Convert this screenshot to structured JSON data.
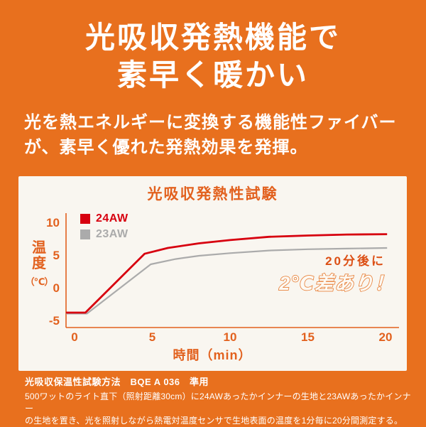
{
  "colors": {
    "background": "#E8701E",
    "panel": "#F9F6F0",
    "accent": "#E2611E",
    "series_red": "#D7000F",
    "series_gray": "#ABABAB",
    "annotation_red": "#DC4F14",
    "annotation_outline": "#E8823C",
    "annotation_fill": "#FDFAF4",
    "text_white": "#FFFFFF"
  },
  "header": {
    "title_line1": "光吸収発熱機能で",
    "title_line2": "素早く暖かい",
    "subtitle_line1": "光を熱エネルギーに変換する機能性ファイバー",
    "subtitle_line2": "が、素早く優れた発熱効果を発揮。"
  },
  "chart": {
    "title": "光吸収発熱性試験",
    "legend": [
      {
        "label": "24AW",
        "color": "#D7000F"
      },
      {
        "label": "23AW",
        "color": "#ABABAB"
      }
    ],
    "y_axis": {
      "char1": "温",
      "char2": "度",
      "unit": "（℃）"
    },
    "x_axis": {
      "label": "時間（min）"
    },
    "annotation": {
      "line1": "20分後に",
      "line2": "2℃差あり！"
    }
  },
  "chart_data": {
    "type": "line",
    "title": "光吸収発熱性試験",
    "xlabel": "時間（min）",
    "ylabel": "温度（℃）",
    "x_ticks": [
      0,
      5,
      10,
      15,
      20
    ],
    "y_ticks": [
      10,
      5,
      0,
      -5
    ],
    "xlim": [
      -0.55,
      20.9
    ],
    "ylim": [
      -6,
      11
    ],
    "grid": false,
    "legend_position": "top-left",
    "series": [
      {
        "name": "24AW",
        "color": "#D7000F",
        "x": [
          -0.55,
          0.7,
          4.5,
          6,
          8,
          10,
          12.5,
          15,
          17.5,
          20.1
        ],
        "values": [
          -3.7,
          -3.7,
          5.3,
          6.2,
          6.9,
          7.4,
          7.9,
          8.1,
          8.25,
          8.3
        ]
      },
      {
        "name": "23AW",
        "color": "#ABABAB",
        "x": [
          -0.55,
          0.8,
          4.9,
          6.5,
          8,
          10,
          12.5,
          15,
          17.5,
          20.1
        ],
        "values": [
          -3.85,
          -3.85,
          3.7,
          4.5,
          5.0,
          5.4,
          5.8,
          6.0,
          6.1,
          6.2
        ]
      }
    ],
    "annotation": "20分後に2℃差あり！"
  },
  "footnote": {
    "line1": "光吸収保温性試験方法　BQE A 036　準用",
    "line2": "500ワットのライト直下（照射距離30cm）に24AWあったかインナーの生地と23AWあったかインナー",
    "line3": "の生地を置き、光を照射しながら熱電対温度センサで生地表面の温度を1分毎に20分間測定する。"
  }
}
